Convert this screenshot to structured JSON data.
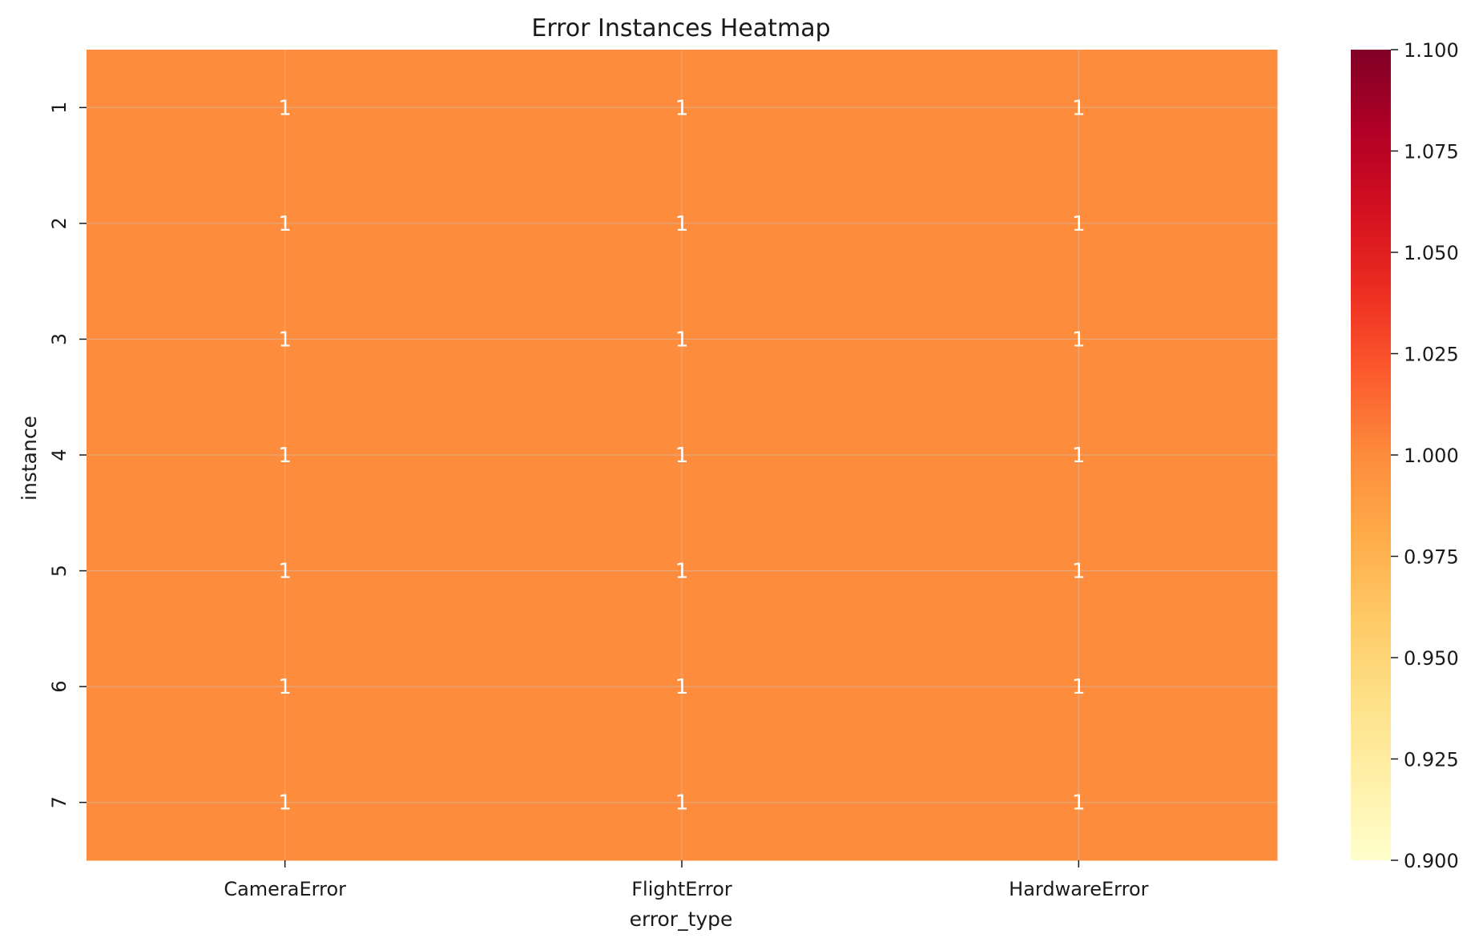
{
  "chart_data": {
    "type": "heatmap",
    "title": "Error Instances Heatmap",
    "xlabel": "error_type",
    "ylabel": "instance",
    "x_categories": [
      "CameraError",
      "FlightError",
      "HardwareError"
    ],
    "y_categories": [
      "1",
      "2",
      "3",
      "4",
      "5",
      "6",
      "7"
    ],
    "values": [
      [
        1,
        1,
        1
      ],
      [
        1,
        1,
        1
      ],
      [
        1,
        1,
        1
      ],
      [
        1,
        1,
        1
      ],
      [
        1,
        1,
        1
      ],
      [
        1,
        1,
        1
      ],
      [
        1,
        1,
        1
      ]
    ],
    "annotations": true,
    "colormap": "YlOrRd",
    "colorbar": {
      "vmin": 0.9,
      "vmax": 1.1,
      "ticks": [
        "0.900",
        "0.925",
        "0.950",
        "0.975",
        "1.000",
        "1.025",
        "1.050",
        "1.075",
        "1.100"
      ],
      "colors": [
        "#ffffcc",
        "#fff0a8",
        "#fee087",
        "#fec965",
        "#feab49",
        "#fd8c3c",
        "#fc5b2e",
        "#ed2e21",
        "#d41020",
        "#b10026",
        "#800026"
      ]
    },
    "cell_color": "#fd8d3c",
    "grid": true,
    "grid_color": "#c8c8c8"
  }
}
